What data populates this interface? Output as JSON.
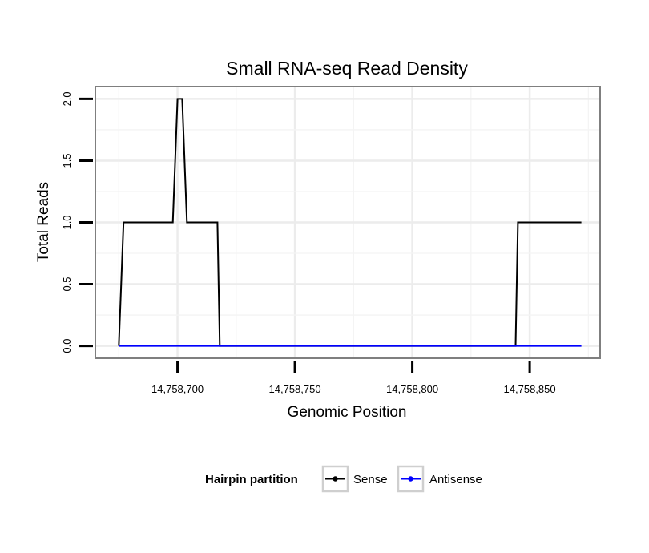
{
  "chart_data": {
    "type": "line",
    "title": "Small RNA-seq Read Density",
    "xlabel": "Genomic Position",
    "ylabel": "Total Reads",
    "xlim": [
      14758665,
      14758880
    ],
    "ylim": [
      -0.1,
      2.1
    ],
    "x_ticks": [
      14758700,
      14758750,
      14758800,
      14758850
    ],
    "x_tick_labels": [
      "14,758,700",
      "14,758,750",
      "14,758,800",
      "14,758,850"
    ],
    "y_ticks": [
      0,
      0.5,
      1,
      1.5,
      2
    ],
    "y_tick_labels": [
      "0.0",
      "0.5",
      "1.0",
      "1.5",
      "2.0"
    ],
    "grid": true,
    "legend": {
      "title": "Hairpin partition",
      "placement": "bottom",
      "entries": [
        "Sense",
        "Antisense"
      ]
    },
    "series": [
      {
        "name": "Sense",
        "color": "#000000",
        "points": [
          [
            14758675,
            0
          ],
          [
            14758677,
            1
          ],
          [
            14758698,
            1
          ],
          [
            14758700,
            2
          ],
          [
            14758702,
            2
          ],
          [
            14758704,
            1
          ],
          [
            14758717,
            1
          ],
          [
            14758718,
            0
          ],
          [
            14758844,
            0
          ],
          [
            14758845,
            1
          ],
          [
            14758872,
            1
          ]
        ]
      },
      {
        "name": "Antisense",
        "color": "#0000ff",
        "points": [
          [
            14758675,
            0
          ],
          [
            14758872,
            0
          ]
        ]
      }
    ]
  }
}
